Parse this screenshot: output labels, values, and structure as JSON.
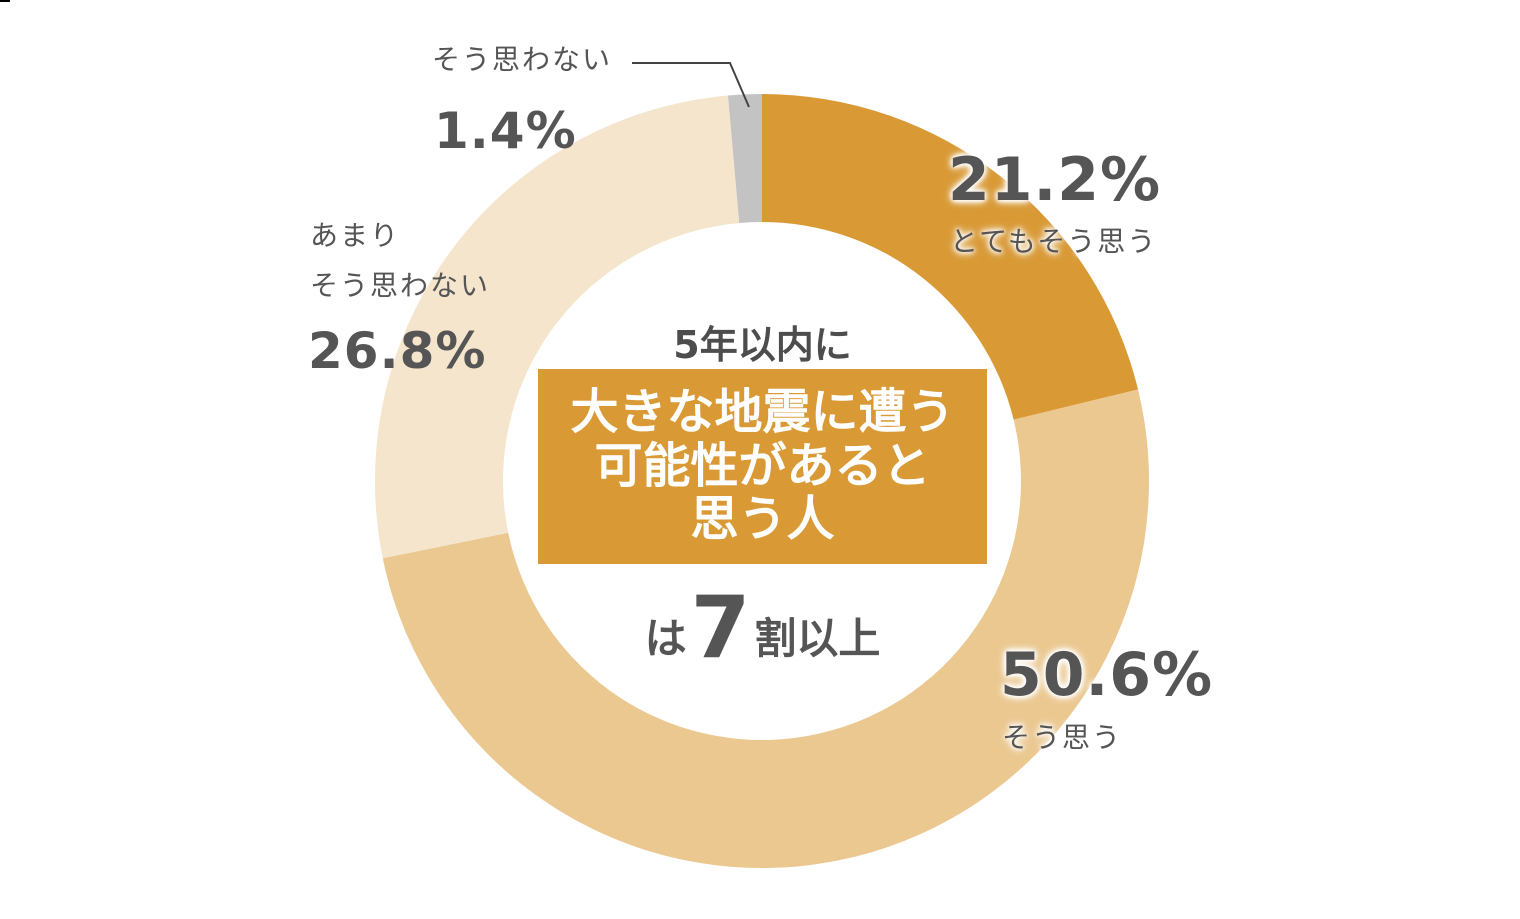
{
  "colors": {
    "very_much": "#d99a36",
    "somewhat": "#ebc890",
    "not_much": "#f5e5cc",
    "not_at_all": "#c3c3c3",
    "text": "#555555",
    "box_bg": "#d99a36",
    "box_text": "#ffffff"
  },
  "center": {
    "line1": "5年以内に",
    "box_lines": [
      "大きな地震に遭う",
      "可能性があると",
      "思う人"
    ],
    "bottom_prefix": "は",
    "bottom_number": "7",
    "bottom_suffix": "割以上"
  },
  "labels": {
    "very_much": {
      "pct": "21.2%",
      "text": "とてもそう思う"
    },
    "somewhat": {
      "pct": "50.6%",
      "text": "そう思う"
    },
    "not_much": {
      "pct": "26.8%",
      "text_line1": "あまり",
      "text_line2": "そう思わない"
    },
    "not_at_all": {
      "pct": "1.4%",
      "text": "そう思わない"
    }
  },
  "chart_data": {
    "type": "pie",
    "subtype": "donut",
    "title": "5年以内に大きな地震に遭う可能性があると思う人は7割以上",
    "categories": [
      "とてもそう思う",
      "そう思う",
      "あまりそう思わない",
      "そう思わない"
    ],
    "values": [
      21.2,
      50.6,
      26.8,
      1.4
    ],
    "unit": "%",
    "colors": [
      "#d99a36",
      "#ebc890",
      "#f5e5cc",
      "#c3c3c3"
    ],
    "start_angle": "12 o'clock",
    "direction": "clockwise",
    "legend": "none (direct labels)",
    "center_text": "5年以内に 大きな地震に遭う可能性があると思う人 は7割以上"
  }
}
